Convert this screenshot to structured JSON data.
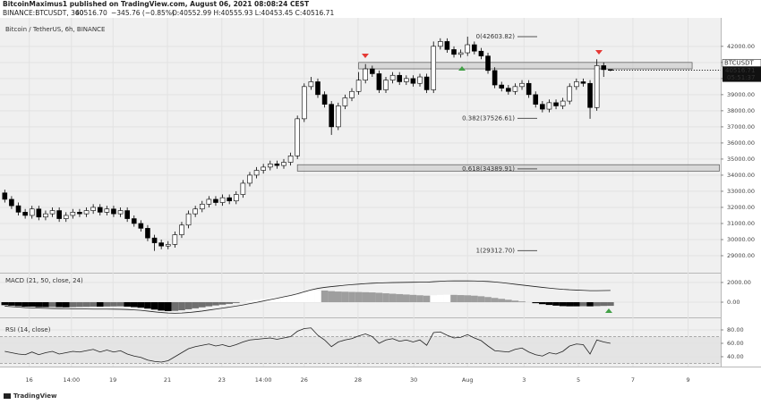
{
  "header": {
    "author_line": "BitcoinMaximus1 published on TradingView.com, August 06, 2021 08:08:24 CEST",
    "symbol": "BINANCE:BTCUSDT, 360",
    "last": "40516.70",
    "change": "−345.76 (−0.85%)",
    "ohlc": "O:40552.99 H:40555.93 L:40453.45 C:40516.71"
  },
  "footer": {
    "brand": "TradingView"
  },
  "chart_data": [
    {
      "type": "candlestick",
      "title": "Bitcoin / TetherUS, 6h, BINANCE",
      "up_color": "#ffffff",
      "down_color": "#000000",
      "edge_color": "#000000",
      "open": [
        32900,
        32500,
        32100,
        31700,
        31500,
        31900,
        31400,
        31600,
        31800,
        31300,
        31500,
        31700,
        31600,
        31800,
        32000,
        31700,
        31900,
        31600,
        31800,
        31300,
        31000,
        30700,
        30100,
        29800,
        29600,
        29700,
        30300,
        30900,
        31600,
        31900,
        32200,
        32500,
        32300,
        32600,
        32400,
        32800,
        33500,
        34000,
        34300,
        34500,
        34700,
        34600,
        34800,
        35200,
        37500,
        39500,
        39800,
        39000,
        38400,
        37000,
        38300,
        38800,
        39200,
        39900,
        40600,
        40300,
        39300,
        39900,
        40200,
        39800,
        40000,
        39700,
        40100,
        39300,
        42000,
        42300,
        41800,
        41500,
        41600,
        42100,
        41700,
        41400,
        40500,
        39600,
        39400,
        39200,
        39500,
        39700,
        39000,
        38400,
        38100,
        38500,
        38300,
        38600,
        39500,
        39800,
        39700,
        38200,
        40800,
        40552.99
      ],
      "high": [
        33100,
        32700,
        32300,
        31900,
        32100,
        32100,
        31800,
        32000,
        32000,
        31700,
        31900,
        31900,
        32000,
        32200,
        32200,
        32100,
        32100,
        32000,
        32000,
        31500,
        31200,
        30900,
        30300,
        30000,
        29900,
        30500,
        31100,
        31800,
        32100,
        32400,
        32700,
        32700,
        32800,
        32800,
        33000,
        33700,
        34200,
        34500,
        34700,
        34900,
        34900,
        35000,
        35400,
        37700,
        39700,
        40100,
        40000,
        39200,
        38600,
        38500,
        39000,
        39400,
        40400,
        40900,
        40800,
        40500,
        40100,
        40400,
        40400,
        40200,
        40200,
        40300,
        40300,
        42300,
        42500,
        42500,
        42000,
        41800,
        42600,
        42300,
        41900,
        41600,
        40700,
        39800,
        39600,
        39700,
        39900,
        39900,
        39200,
        38600,
        38700,
        38700,
        38800,
        39700,
        40000,
        40000,
        39900,
        41200,
        41000,
        40555.93
      ],
      "low": [
        32300,
        31900,
        31500,
        31300,
        31300,
        31200,
        31200,
        31400,
        31100,
        31100,
        31300,
        31400,
        31400,
        31600,
        31500,
        31500,
        31400,
        31400,
        31100,
        30800,
        30500,
        29900,
        29300,
        29400,
        29400,
        29500,
        30100,
        30700,
        31400,
        31700,
        32000,
        32100,
        32100,
        32200,
        32200,
        32600,
        33300,
        33800,
        34100,
        34300,
        34400,
        34400,
        34600,
        35000,
        37300,
        39300,
        38800,
        38200,
        36500,
        36800,
        38100,
        38600,
        39000,
        39700,
        40100,
        39100,
        39100,
        39700,
        39600,
        39600,
        39500,
        39500,
        39100,
        39100,
        41800,
        41600,
        41300,
        41300,
        41400,
        41500,
        41200,
        40300,
        39400,
        39200,
        39000,
        39000,
        39300,
        38800,
        38200,
        37900,
        37900,
        38100,
        38100,
        38400,
        39300,
        39500,
        37500,
        38000,
        40100,
        40453.45
      ],
      "close": [
        32500,
        32100,
        31700,
        31500,
        31900,
        31400,
        31600,
        31800,
        31300,
        31500,
        31700,
        31600,
        31800,
        32000,
        31700,
        31900,
        31600,
        31800,
        31300,
        31000,
        30700,
        30100,
        29800,
        29600,
        29700,
        30300,
        30900,
        31600,
        31900,
        32200,
        32500,
        32300,
        32600,
        32400,
        32800,
        33500,
        34000,
        34300,
        34500,
        34700,
        34600,
        34800,
        35200,
        37500,
        39500,
        39800,
        39000,
        38400,
        37000,
        38300,
        38800,
        39200,
        39900,
        40600,
        40300,
        39300,
        39900,
        40200,
        39800,
        40000,
        39700,
        40100,
        39300,
        42000,
        42300,
        41800,
        41500,
        41600,
        42100,
        41700,
        41400,
        40500,
        39600,
        39400,
        39200,
        39500,
        39700,
        39000,
        38400,
        38100,
        38500,
        38300,
        38600,
        39500,
        39800,
        39700,
        38200,
        40800,
        40553,
        40516.71
      ],
      "xlim": [
        -0.7,
        105.2
      ],
      "xticks": [
        {
          "value": 3.6,
          "label": "16"
        },
        {
          "value": 9.8,
          "label": "14:00"
        },
        {
          "value": 15.9,
          "label": "19"
        },
        {
          "value": 23.9,
          "label": "21"
        },
        {
          "value": 31.9,
          "label": "23"
        },
        {
          "value": 38,
          "label": "14:00"
        },
        {
          "value": 44,
          "label": "26"
        },
        {
          "value": 51.9,
          "label": "28"
        },
        {
          "value": 60.1,
          "label": "30"
        },
        {
          "value": 68,
          "label": "Aug"
        },
        {
          "value": 76.3,
          "label": "3"
        },
        {
          "value": 84.3,
          "label": "5"
        },
        {
          "value": 92.3,
          "label": "7"
        },
        {
          "value": 100.4,
          "label": "9"
        }
      ],
      "ylim": [
        28000,
        43600
      ],
      "yticks": [
        {
          "value": 29000,
          "label": "29000.00"
        },
        {
          "value": 30000,
          "label": "30000.00"
        },
        {
          "value": 31000,
          "label": "31000.00"
        },
        {
          "value": 32000,
          "label": "32000.00"
        },
        {
          "value": 33000,
          "label": "33000.00"
        },
        {
          "value": 34000,
          "label": "34000.00"
        },
        {
          "value": 35000,
          "label": "35000.00"
        },
        {
          "value": 36000,
          "label": "36000.00"
        },
        {
          "value": 37000,
          "label": "37000.00"
        },
        {
          "value": 38000,
          "label": "38000.00"
        },
        {
          "value": 39000,
          "label": "39000.00"
        },
        {
          "value": 40000,
          "label": "40000.00"
        },
        {
          "value": 41000,
          "label": "41000.00"
        },
        {
          "value": 42000,
          "label": "42000.00"
        }
      ],
      "zones": [
        {
          "xlim": [
            52,
            101
          ],
          "ylim": [
            40600,
            41000
          ]
        },
        {
          "xlim": [
            43,
            105
          ],
          "ylim": [
            34250,
            34650
          ]
        }
      ],
      "fib_levels": [
        {
          "value": 42603.82,
          "label": "0(42603.82)"
        },
        {
          "value": 37526.61,
          "label": "0.382(37526.61)"
        },
        {
          "value": 34389.91,
          "label": "0.618(34389.91)"
        },
        {
          "value": 29312.7,
          "label": "1(29312.70)"
        }
      ],
      "symbol_tag": "BTCUSDT",
      "price_tag": "40516.71",
      "countdown": "05:51:37"
    },
    {
      "type": "macd",
      "title": "MACD (21, 50, close, 24)",
      "histogram": [
        -300,
        -350,
        -400,
        -450,
        -450,
        -500,
        -500,
        -480,
        -500,
        -520,
        -500,
        -480,
        -470,
        -450,
        -450,
        -440,
        -430,
        -420,
        -450,
        -500,
        -560,
        -650,
        -750,
        -850,
        -900,
        -880,
        -820,
        -720,
        -620,
        -520,
        -420,
        -330,
        -250,
        -170,
        -80,
        20,
        120,
        220,
        320,
        420,
        500,
        580,
        680,
        820,
        1000,
        1150,
        1200,
        1180,
        1120,
        1080,
        1060,
        1040,
        1030,
        1010,
        990,
        950,
        900,
        860,
        820,
        780,
        740,
        700,
        660,
        700,
        740,
        760,
        740,
        720,
        700,
        660,
        600,
        520,
        430,
        340,
        250,
        160,
        80,
        0,
        -100,
        -200,
        -280,
        -350,
        -400,
        -420,
        -420,
        -410,
        -420,
        -400,
        -380,
        -370
      ],
      "line": [
        -400,
        -450,
        -500,
        -550,
        -580,
        -600,
        -620,
        -640,
        -650,
        -660,
        -670,
        -680,
        -690,
        -700,
        -700,
        -700,
        -710,
        -720,
        -740,
        -780,
        -830,
        -900,
        -980,
        -1050,
        -1100,
        -1120,
        -1100,
        -1050,
        -980,
        -900,
        -800,
        -700,
        -600,
        -500,
        -400,
        -280,
        -150,
        -20,
        120,
        260,
        400,
        540,
        680,
        850,
        1050,
        1250,
        1400,
        1500,
        1580,
        1650,
        1720,
        1780,
        1830,
        1880,
        1920,
        1950,
        1970,
        1990,
        2000,
        2010,
        2020,
        2030,
        2030,
        2080,
        2120,
        2150,
        2160,
        2160,
        2160,
        2150,
        2130,
        2100,
        2050,
        1980,
        1900,
        1820,
        1740,
        1660,
        1580,
        1500,
        1430,
        1360,
        1300,
        1260,
        1230,
        1200,
        1170,
        1170,
        1180,
        1190
      ],
      "colors": {
        "pos_up": "#ffffff",
        "pos_down": "#9e9e9e",
        "neg_down": "#000000",
        "neg_up": "#6e6e6e",
        "line": "#222222"
      },
      "ylim": [
        -1450,
        2900
      ],
      "yticks": [
        {
          "value": 0,
          "label": "0.00"
        },
        {
          "value": 2000,
          "label": "2000.00"
        }
      ]
    },
    {
      "type": "rsi",
      "title": "RSI (14, close)",
      "values": [
        48,
        46,
        44,
        43,
        47,
        43,
        46,
        48,
        44,
        46,
        48,
        47,
        49,
        51,
        47,
        50,
        47,
        49,
        44,
        41,
        39,
        35,
        33,
        32,
        34,
        40,
        46,
        52,
        55,
        57,
        59,
        56,
        58,
        55,
        58,
        62,
        65,
        66,
        67,
        68,
        66,
        68,
        70,
        78,
        82,
        83,
        72,
        65,
        55,
        62,
        65,
        67,
        71,
        74,
        70,
        60,
        65,
        67,
        63,
        65,
        62,
        65,
        57,
        76,
        77,
        72,
        68,
        69,
        73,
        68,
        64,
        56,
        49,
        48,
        47,
        51,
        53,
        47,
        43,
        41,
        46,
        44,
        48,
        56,
        59,
        58,
        44,
        65,
        62,
        60
      ],
      "color": "#222222",
      "band": [
        30,
        70
      ],
      "ylim": [
        29.3,
        94.7
      ],
      "yticks": [
        {
          "value": 40,
          "label": "40.00"
        },
        {
          "value": 60,
          "label": "60.00"
        },
        {
          "value": 80,
          "label": "80.00"
        }
      ]
    }
  ]
}
